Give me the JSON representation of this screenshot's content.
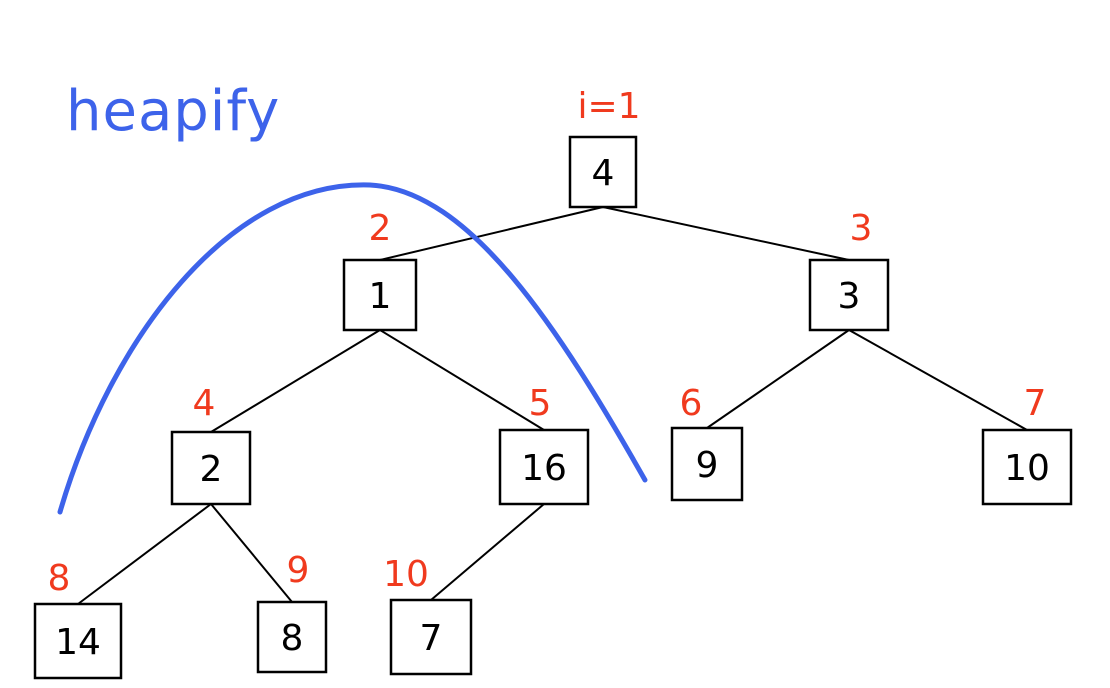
{
  "title": "heapify",
  "colors": {
    "title": "#3d63ea",
    "index_labels": "#f03a1e",
    "arc": "#3d63ea",
    "node_text": "#000000"
  },
  "root_index_label": "i=1",
  "nodes": [
    {
      "value": "4",
      "index_label": "i=1"
    },
    {
      "value": "1",
      "index_label": "2"
    },
    {
      "value": "3",
      "index_label": "3"
    },
    {
      "value": "2",
      "index_label": "4"
    },
    {
      "value": "16",
      "index_label": "5"
    },
    {
      "value": "9",
      "index_label": "6"
    },
    {
      "value": "10",
      "index_label": "7"
    },
    {
      "value": "14",
      "index_label": "8"
    },
    {
      "value": "8",
      "index_label": "9"
    },
    {
      "value": "7",
      "index_label": "10"
    }
  ],
  "edges": [
    [
      0,
      1
    ],
    [
      0,
      2
    ],
    [
      1,
      3
    ],
    [
      1,
      4
    ],
    [
      2,
      5
    ],
    [
      2,
      6
    ],
    [
      3,
      7
    ],
    [
      3,
      8
    ],
    [
      4,
      9
    ]
  ]
}
